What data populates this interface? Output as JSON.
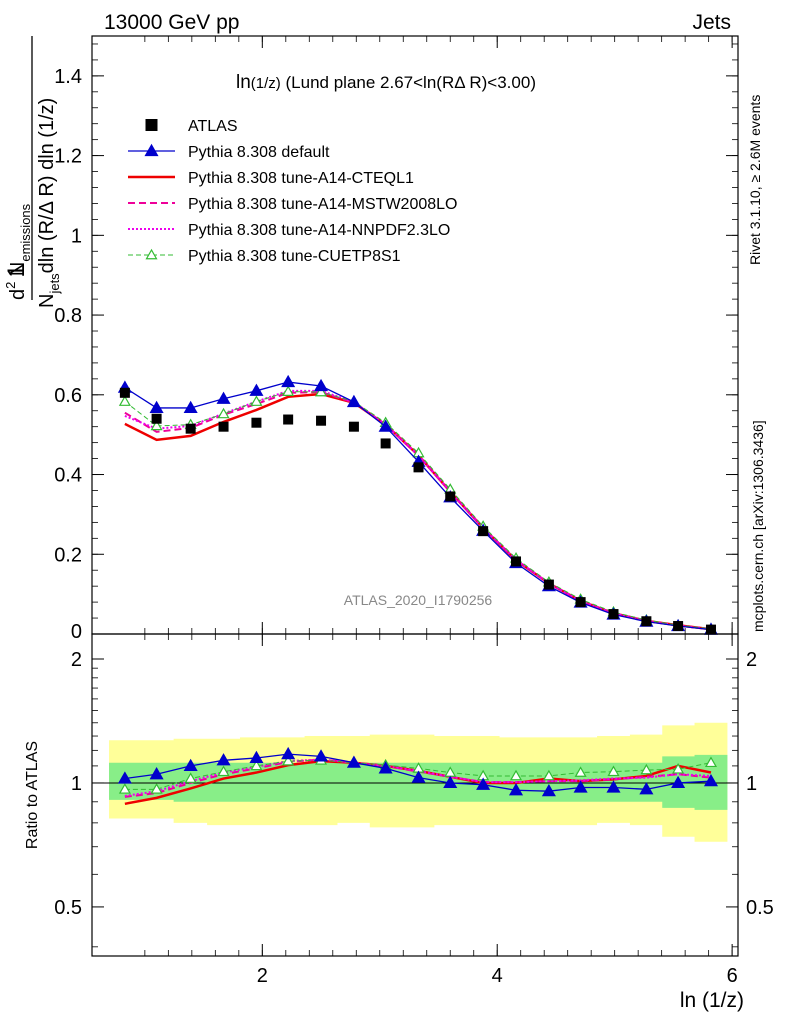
{
  "header": {
    "left": "13000 GeV pp",
    "right": "Jets"
  },
  "side": {
    "rivet": "Rivet 3.1.10, ≥ 2.6M events",
    "mcplots": "mcplots.cern.ch [arXiv:1306.3436]"
  },
  "watermark": "ATLAS_2020_I1790256",
  "chart_data": [
    {
      "type": "line",
      "panel": "main",
      "title_main": "ln",
      "title_sub": "(1/z)",
      "title_rest": " (Lund plane 2.67<ln(RΔ R)<3.00)",
      "ylabel": {
        "one": "1",
        "n": "N",
        "jets": "jets",
        "dln": "dln (R/Δ R) dln (1/z)",
        "d2": "d",
        "two": "2",
        "nn": " N",
        "emissions": "emissions"
      },
      "ylim": [
        0,
        1.5
      ],
      "yticks": [
        {
          "v": 0,
          "label": "0"
        },
        {
          "v": 0.2,
          "label": "0.2"
        },
        {
          "v": 0.4,
          "label": "0.4"
        },
        {
          "v": 0.6,
          "label": "0.6"
        },
        {
          "v": 0.8,
          "label": "0.8"
        },
        {
          "v": 1.0,
          "label": "1"
        },
        {
          "v": 1.2,
          "label": "1.2"
        },
        {
          "v": 1.4,
          "label": "1.4"
        }
      ],
      "x": [
        0.83,
        1.1,
        1.39,
        1.67,
        1.95,
        2.22,
        2.5,
        2.78,
        3.05,
        3.33,
        3.6,
        3.88,
        4.16,
        4.44,
        4.71,
        4.99,
        5.27,
        5.54,
        5.82
      ],
      "data": {
        "name": "ATLAS",
        "values": [
          0.605,
          0.54,
          0.515,
          0.52,
          0.53,
          0.538,
          0.535,
          0.52,
          0.478,
          0.418,
          0.345,
          0.258,
          0.182,
          0.124,
          0.08,
          0.05,
          0.032,
          0.02,
          0.011
        ]
      },
      "series": [
        {
          "name": "Pythia 8.308 default",
          "color": "#0000cc",
          "style": "solid-triangle",
          "values": [
            0.618,
            0.567,
            0.567,
            0.59,
            0.61,
            0.632,
            0.622,
            0.582,
            0.52,
            0.432,
            0.343,
            0.259,
            0.178,
            0.12,
            0.079,
            0.049,
            0.031,
            0.02,
            0.011
          ]
        },
        {
          "name": "Pythia 8.308 tune-A14-CTEQL1",
          "color": "#ee0000",
          "style": "solid-thick",
          "values": [
            0.527,
            0.487,
            0.497,
            0.532,
            0.562,
            0.595,
            0.602,
            0.58,
            0.525,
            0.448,
            0.357,
            0.266,
            0.185,
            0.127,
            0.083,
            0.052,
            0.033,
            0.022,
            0.012
          ]
        },
        {
          "name": "Pythia 8.308 tune-A14-MSTW2008LO",
          "color": "#ee0099",
          "style": "dashed",
          "values": [
            0.555,
            0.507,
            0.517,
            0.55,
            0.577,
            0.605,
            0.607,
            0.58,
            0.525,
            0.447,
            0.357,
            0.265,
            0.186,
            0.127,
            0.082,
            0.052,
            0.033,
            0.021,
            0.012
          ]
        },
        {
          "name": "Pythia 8.308 tune-A14-NNPDF2.3LO",
          "color": "#ee00ee",
          "style": "dotted",
          "values": [
            0.547,
            0.515,
            0.522,
            0.553,
            0.583,
            0.61,
            0.61,
            0.582,
            0.525,
            0.448,
            0.357,
            0.266,
            0.186,
            0.127,
            0.083,
            0.052,
            0.033,
            0.021,
            0.012
          ]
        },
        {
          "name": "Pythia 8.308 tune-CUETP8S1",
          "color": "#33bb33",
          "style": "dashed-open-triangle",
          "values": [
            0.583,
            0.522,
            0.525,
            0.552,
            0.583,
            0.608,
            0.607,
            0.583,
            0.53,
            0.454,
            0.363,
            0.27,
            0.19,
            0.13,
            0.087,
            0.055,
            0.035,
            0.022,
            0.013
          ]
        }
      ]
    },
    {
      "type": "line",
      "panel": "ratio",
      "ylabel": "Ratio to ATLAS",
      "xlabel": "ln (1/z)",
      "scale": "log",
      "ylim": [
        0.38,
        2.3
      ],
      "xlim": [
        0.55,
        6.05
      ],
      "xticks": [
        {
          "v": 2,
          "label": "2"
        },
        {
          "v": 4,
          "label": "4"
        },
        {
          "v": 6,
          "label": "6"
        }
      ],
      "yticks": [
        {
          "v": 0.5,
          "label": "0.5"
        },
        {
          "v": 1,
          "label": "1"
        },
        {
          "v": 2,
          "label": "2"
        }
      ],
      "band_yellow": {
        "lo": [
          0.82,
          0.82,
          0.8,
          0.79,
          0.79,
          0.79,
          0.79,
          0.8,
          0.78,
          0.78,
          0.79,
          0.79,
          0.79,
          0.79,
          0.79,
          0.8,
          0.79,
          0.74,
          0.72
        ],
        "hi": [
          1.27,
          1.27,
          1.28,
          1.28,
          1.29,
          1.29,
          1.3,
          1.3,
          1.31,
          1.31,
          1.3,
          1.3,
          1.29,
          1.29,
          1.29,
          1.3,
          1.31,
          1.38,
          1.4
        ]
      },
      "band_green": {
        "lo": [
          0.91,
          0.91,
          0.9,
          0.9,
          0.9,
          0.9,
          0.9,
          0.9,
          0.9,
          0.9,
          0.9,
          0.9,
          0.9,
          0.9,
          0.9,
          0.9,
          0.9,
          0.87,
          0.86
        ],
        "hi": [
          1.12,
          1.12,
          1.12,
          1.12,
          1.12,
          1.12,
          1.12,
          1.12,
          1.12,
          1.12,
          1.12,
          1.12,
          1.12,
          1.12,
          1.12,
          1.12,
          1.12,
          1.16,
          1.17
        ]
      },
      "series": [
        {
          "name": "Pythia 8.308 default",
          "values": [
            1.025,
            1.05,
            1.1,
            1.135,
            1.15,
            1.175,
            1.16,
            1.12,
            1.085,
            1.03,
            1.0,
            0.99,
            0.96,
            0.955,
            0.975,
            0.975,
            0.965,
            1.0,
            1.01
          ]
        },
        {
          "name": "Pythia 8.308 tune-A14-CTEQL1",
          "values": [
            0.89,
            0.92,
            0.97,
            1.025,
            1.06,
            1.105,
            1.13,
            1.12,
            1.1,
            1.07,
            1.035,
            1.0,
            1.0,
            1.025,
            1.01,
            1.02,
            1.04,
            1.1,
            1.06
          ]
        },
        {
          "name": "Pythia 8.308 tune-A14-MSTW2008LO",
          "values": [
            0.925,
            0.945,
            1.0,
            1.05,
            1.085,
            1.125,
            1.14,
            1.12,
            1.1,
            1.065,
            1.035,
            1.005,
            1.005,
            1.01,
            1.01,
            1.02,
            1.035,
            1.05,
            1.03
          ]
        },
        {
          "name": "Pythia 8.308 tune-A14-NNPDF2.3LO",
          "values": [
            0.93,
            0.955,
            1.01,
            1.06,
            1.095,
            1.13,
            1.14,
            1.12,
            1.1,
            1.07,
            1.035,
            1.005,
            1.005,
            1.01,
            1.015,
            1.025,
            1.03,
            1.05,
            1.04
          ]
        },
        {
          "name": "Pythia 8.308 tune-CUETP8S1",
          "values": [
            0.965,
            0.965,
            1.025,
            1.065,
            1.1,
            1.13,
            1.135,
            1.12,
            1.105,
            1.085,
            1.06,
            1.04,
            1.04,
            1.04,
            1.06,
            1.065,
            1.075,
            1.08,
            1.12
          ]
        }
      ]
    }
  ]
}
